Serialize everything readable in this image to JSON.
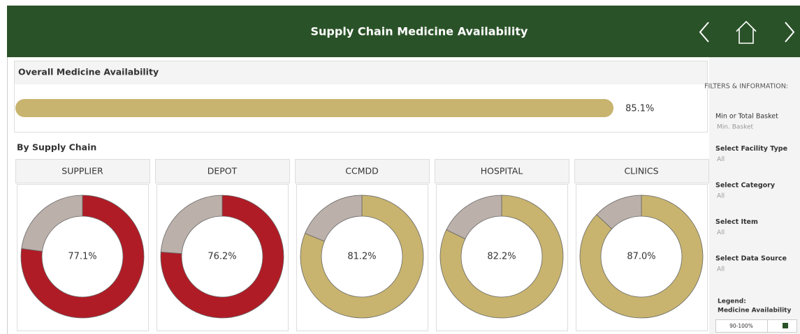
{
  "header": {
    "title": "Supply Chain Medicine Availability"
  },
  "overall": {
    "title": "Overall Medicine Availability",
    "value": 85.1,
    "value_label": "85.1%",
    "color": "#c8b46f",
    "xlim": [
      0,
      100
    ]
  },
  "by_supply_chain": {
    "title": "By Supply Chain",
    "scale": [
      0,
      100
    ],
    "remainder_color": "#bcb0aa",
    "items": [
      {
        "name": "SUPPLIER",
        "value": 77.1,
        "value_label": "77.1%",
        "color": "#b01c26"
      },
      {
        "name": "DEPOT",
        "value": 76.2,
        "value_label": "76.2%",
        "color": "#b01c26"
      },
      {
        "name": "CCMDD",
        "value": 81.2,
        "value_label": "81.2%",
        "color": "#c8b46f"
      },
      {
        "name": "HOSPITAL",
        "value": 82.2,
        "value_label": "82.2%",
        "color": "#c8b46f"
      },
      {
        "name": "CLINICS",
        "value": 87.0,
        "value_label": "87.0%",
        "color": "#c8b46f"
      }
    ]
  },
  "filters": {
    "title": "FILTERS & INFORMATION:",
    "items": [
      {
        "label": "Min or Total Basket",
        "value": "Min. Basket"
      },
      {
        "label": "Select Facility Type",
        "value": "All"
      },
      {
        "label": "Select Category",
        "value": "All"
      },
      {
        "label": "Select Item",
        "value": "All"
      },
      {
        "label": "Select Data Source",
        "value": "All"
      }
    ],
    "legend": {
      "title": "Legend:",
      "subtitle": "Medicine Availability",
      "entries": [
        {
          "label": "90-100%",
          "color": "#2a5228"
        }
      ]
    }
  }
}
